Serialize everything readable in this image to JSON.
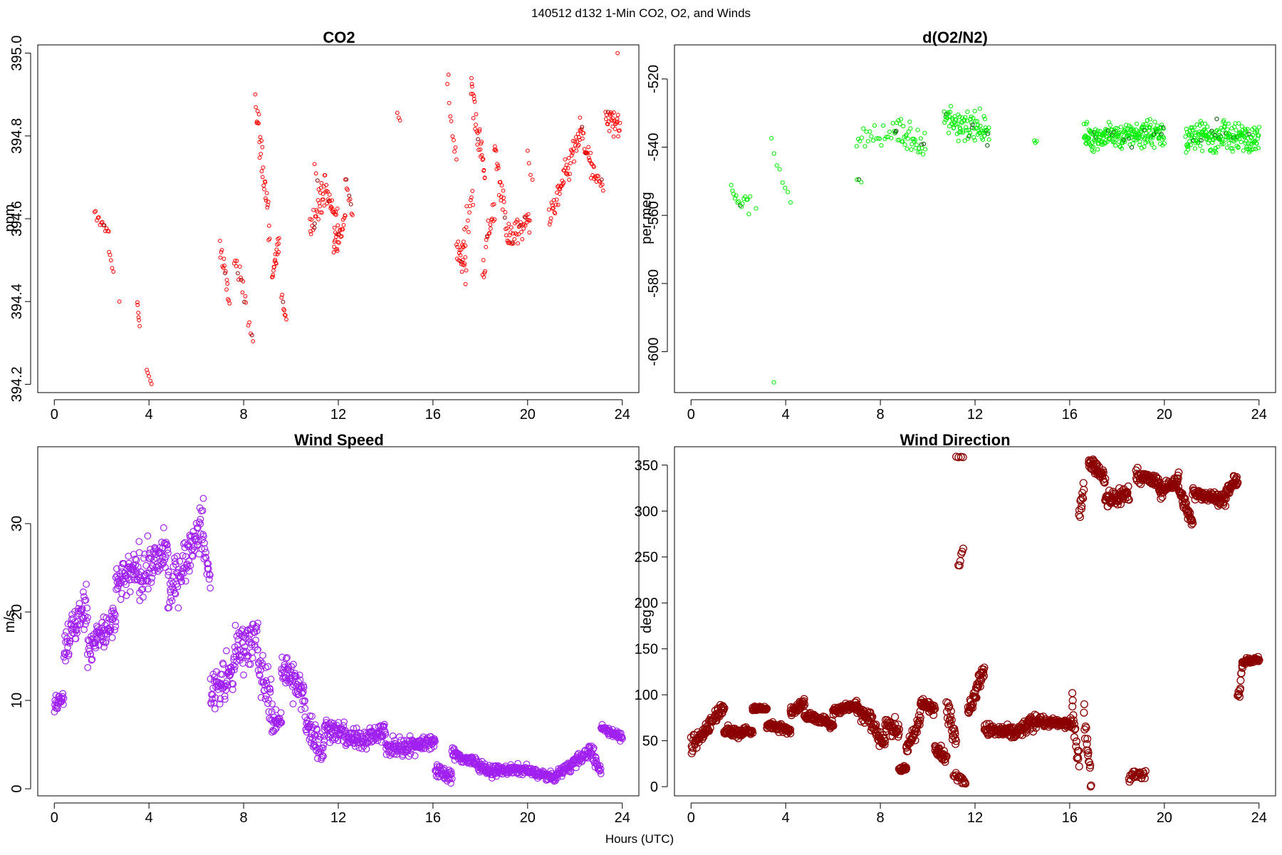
{
  "figure": {
    "suptitle": "140512   d132   1-Min CO2, O2, and Winds",
    "shared_xlabel": "Hours (UTC)"
  },
  "chart_data": [
    {
      "id": "co2",
      "type": "scatter",
      "title": "CO2",
      "xlabel": "",
      "ylabel": "ppm",
      "xlim": [
        -0.7,
        24.7
      ],
      "ylim": [
        394.18,
        395.02
      ],
      "xticks": [
        0,
        4,
        8,
        12,
        16,
        20,
        24
      ],
      "yticks": [
        394.2,
        394.4,
        394.6,
        394.8,
        395.0
      ],
      "ytick_labels": [
        "394.2",
        "394.4",
        "394.6",
        "394.8",
        "395.0"
      ],
      "ytick_rotated": true,
      "marker": "circle-open",
      "color": "#ff0000",
      "accent_color": "#8b0000",
      "grid": false,
      "segments": [
        {
          "x0": 1.7,
          "x1": 2.3,
          "y0": 394.61,
          "y1": 394.57,
          "n": 14,
          "noise": 0.015
        },
        {
          "x0": 2.3,
          "x1": 2.5,
          "y0": 394.52,
          "y1": 394.47,
          "n": 5,
          "noise": 0.01
        },
        {
          "x0": 2.75,
          "x1": 2.75,
          "y0": 394.4,
          "y1": 394.4,
          "n": 1,
          "noise": 0.0
        },
        {
          "x0": 3.5,
          "x1": 3.6,
          "y0": 394.4,
          "y1": 394.34,
          "n": 6,
          "noise": 0.012
        },
        {
          "x0": 3.9,
          "x1": 4.1,
          "y0": 394.24,
          "y1": 394.2,
          "n": 5,
          "noise": 0.012
        },
        {
          "x0": 7.0,
          "x1": 7.4,
          "y0": 394.53,
          "y1": 394.4,
          "n": 16,
          "noise": 0.04
        },
        {
          "x0": 7.6,
          "x1": 8.1,
          "y0": 394.5,
          "y1": 394.4,
          "n": 14,
          "noise": 0.04
        },
        {
          "x0": 8.2,
          "x1": 8.4,
          "y0": 394.36,
          "y1": 394.31,
          "n": 5,
          "noise": 0.02
        },
        {
          "x0": 8.5,
          "x1": 9.1,
          "y0": 394.88,
          "y1": 394.58,
          "n": 30,
          "noise": 0.07
        },
        {
          "x0": 9.2,
          "x1": 9.5,
          "y0": 394.46,
          "y1": 394.54,
          "n": 18,
          "noise": 0.04
        },
        {
          "x0": 9.6,
          "x1": 9.8,
          "y0": 394.41,
          "y1": 394.36,
          "n": 8,
          "noise": 0.015
        },
        {
          "x0": 10.8,
          "x1": 11.4,
          "y0": 394.58,
          "y1": 394.66,
          "n": 24,
          "noise": 0.05
        },
        {
          "x0": 11.0,
          "x1": 11.3,
          "y0": 394.74,
          "y1": 394.62,
          "n": 6,
          "noise": 0.02
        },
        {
          "x0": 11.4,
          "x1": 12.0,
          "y0": 394.68,
          "y1": 394.58,
          "n": 30,
          "noise": 0.05
        },
        {
          "x0": 11.8,
          "x1": 12.3,
          "y0": 394.52,
          "y1": 394.6,
          "n": 22,
          "noise": 0.04
        },
        {
          "x0": 12.3,
          "x1": 12.6,
          "y0": 394.7,
          "y1": 394.62,
          "n": 10,
          "noise": 0.03
        },
        {
          "x0": 14.5,
          "x1": 14.6,
          "y0": 394.85,
          "y1": 394.84,
          "n": 3,
          "noise": 0.01
        },
        {
          "x0": 16.6,
          "x1": 17.0,
          "y0": 394.92,
          "y1": 394.75,
          "n": 10,
          "noise": 0.05
        },
        {
          "x0": 17.0,
          "x1": 17.4,
          "y0": 394.52,
          "y1": 394.48,
          "n": 20,
          "noise": 0.04
        },
        {
          "x0": 17.2,
          "x1": 17.7,
          "y0": 394.52,
          "y1": 394.68,
          "n": 16,
          "noise": 0.05
        },
        {
          "x0": 17.6,
          "x1": 18.2,
          "y0": 394.92,
          "y1": 394.7,
          "n": 30,
          "noise": 0.07
        },
        {
          "x0": 18.1,
          "x1": 18.6,
          "y0": 394.48,
          "y1": 394.62,
          "n": 20,
          "noise": 0.06
        },
        {
          "x0": 18.6,
          "x1": 19.2,
          "y0": 394.78,
          "y1": 394.55,
          "n": 26,
          "noise": 0.06
        },
        {
          "x0": 19.2,
          "x1": 20.1,
          "y0": 394.55,
          "y1": 394.6,
          "n": 36,
          "noise": 0.04
        },
        {
          "x0": 20.0,
          "x1": 20.2,
          "y0": 394.75,
          "y1": 394.7,
          "n": 4,
          "noise": 0.02
        },
        {
          "x0": 20.9,
          "x1": 21.3,
          "y0": 394.6,
          "y1": 394.65,
          "n": 16,
          "noise": 0.04
        },
        {
          "x0": 21.3,
          "x1": 22.2,
          "y0": 394.66,
          "y1": 394.8,
          "n": 40,
          "noise": 0.05
        },
        {
          "x0": 22.2,
          "x1": 22.8,
          "y0": 394.82,
          "y1": 394.7,
          "n": 26,
          "noise": 0.05
        },
        {
          "x0": 22.8,
          "x1": 23.2,
          "y0": 394.7,
          "y1": 394.68,
          "n": 12,
          "noise": 0.02
        },
        {
          "x0": 23.3,
          "x1": 23.9,
          "y0": 394.85,
          "y1": 394.82,
          "n": 30,
          "noise": 0.05
        },
        {
          "x0": 23.8,
          "x1": 23.8,
          "y0": 395.0,
          "y1": 395.0,
          "n": 1,
          "noise": 0.0
        }
      ]
    },
    {
      "id": "o2",
      "type": "scatter",
      "title": "d(O2/N2)",
      "xlabel": "",
      "ylabel": "per meg",
      "xlim": [
        -0.7,
        24.7
      ],
      "ylim": [
        -612,
        -510
      ],
      "xticks": [
        0,
        4,
        8,
        12,
        16,
        20,
        24
      ],
      "yticks": [
        -600,
        -580,
        -560,
        -540,
        -520
      ],
      "ytick_labels": [
        "-600",
        "-580",
        "-560",
        "-540",
        "-520"
      ],
      "ytick_rotated": true,
      "marker": "circle-open",
      "color": "#00ee00",
      "accent_color": "#005500",
      "grid": false,
      "segments": [
        {
          "x0": 1.7,
          "x1": 2.5,
          "y0": -553,
          "y1": -557,
          "n": 16,
          "noise": 5
        },
        {
          "x0": 2.7,
          "x1": 2.8,
          "y0": -558,
          "y1": -558,
          "n": 1,
          "noise": 0
        },
        {
          "x0": 3.4,
          "x1": 4.2,
          "y0": -540,
          "y1": -556,
          "n": 8,
          "noise": 4
        },
        {
          "x0": 3.5,
          "x1": 3.5,
          "y0": -609,
          "y1": -609,
          "n": 1,
          "noise": 0
        },
        {
          "x0": 7.0,
          "x1": 7.2,
          "y0": -549,
          "y1": -550,
          "n": 3,
          "noise": 1
        },
        {
          "x0": 7.0,
          "x1": 8.6,
          "y0": -538,
          "y1": -536,
          "n": 24,
          "noise": 4
        },
        {
          "x0": 8.6,
          "x1": 9.9,
          "y0": -535,
          "y1": -540,
          "n": 40,
          "noise": 6
        },
        {
          "x0": 10.7,
          "x1": 12.6,
          "y0": -532,
          "y1": -535,
          "n": 90,
          "noise": 6
        },
        {
          "x0": 14.5,
          "x1": 14.6,
          "y0": -538,
          "y1": -538,
          "n": 3,
          "noise": 1
        },
        {
          "x0": 16.6,
          "x1": 20.0,
          "y0": -537,
          "y1": -536,
          "n": 230,
          "noise": 5
        },
        {
          "x0": 20.9,
          "x1": 24.0,
          "y0": -537,
          "y1": -537,
          "n": 200,
          "noise": 5
        }
      ]
    },
    {
      "id": "wind_speed",
      "type": "scatter",
      "title": "Wind Speed",
      "xlabel": "",
      "ylabel": "m/s",
      "xlim": [
        -0.7,
        24.7
      ],
      "ylim": [
        -0.8,
        38.7
      ],
      "xticks": [
        0,
        4,
        8,
        12,
        16,
        20,
        24
      ],
      "yticks": [
        0,
        10,
        20,
        30
      ],
      "ytick_labels": [
        "0",
        "10",
        "20",
        "30"
      ],
      "ytick_rotated": true,
      "marker": "circle-open",
      "color": "#a020f0",
      "grid": false,
      "segments": [
        {
          "x0": 0.0,
          "x1": 0.4,
          "y0": 9.5,
          "y1": 10.5,
          "n": 24,
          "noise": 1.2
        },
        {
          "x0": 0.4,
          "x1": 1.4,
          "y0": 16,
          "y1": 21,
          "n": 60,
          "noise": 3.2
        },
        {
          "x0": 1.4,
          "x1": 2.6,
          "y0": 16,
          "y1": 19,
          "n": 72,
          "noise": 2.8
        },
        {
          "x0": 2.6,
          "x1": 3.6,
          "y0": 23,
          "y1": 25,
          "n": 60,
          "noise": 3.0
        },
        {
          "x0": 3.6,
          "x1": 4.8,
          "y0": 24,
          "y1": 27,
          "n": 72,
          "noise": 3.3
        },
        {
          "x0": 4.8,
          "x1": 6.3,
          "y0": 22,
          "y1": 30,
          "n": 90,
          "noise": 3.2
        },
        {
          "x0": 6.3,
          "x1": 6.6,
          "y0": 28,
          "y1": 23,
          "n": 16,
          "noise": 2.0
        },
        {
          "x0": 6.6,
          "x1": 7.6,
          "y0": 11,
          "y1": 13,
          "n": 60,
          "noise": 3.0
        },
        {
          "x0": 7.6,
          "x1": 8.6,
          "y0": 16,
          "y1": 17,
          "n": 60,
          "noise": 3.5
        },
        {
          "x0": 8.6,
          "x1": 9.2,
          "y0": 14,
          "y1": 10,
          "n": 36,
          "noise": 3.5
        },
        {
          "x0": 9.2,
          "x1": 9.6,
          "y0": 7,
          "y1": 8,
          "n": 24,
          "noise": 1.5
        },
        {
          "x0": 9.6,
          "x1": 10.6,
          "y0": 14,
          "y1": 10,
          "n": 60,
          "noise": 3.0
        },
        {
          "x0": 10.6,
          "x1": 11.4,
          "y0": 8,
          "y1": 4,
          "n": 48,
          "noise": 2.5
        },
        {
          "x0": 11.4,
          "x1": 12.8,
          "y0": 7,
          "y1": 5.5,
          "n": 84,
          "noise": 1.6
        },
        {
          "x0": 12.8,
          "x1": 14.0,
          "y0": 5.5,
          "y1": 6.5,
          "n": 72,
          "noise": 1.5
        },
        {
          "x0": 14.0,
          "x1": 15.2,
          "y0": 4.5,
          "y1": 5.0,
          "n": 72,
          "noise": 1.4
        },
        {
          "x0": 15.2,
          "x1": 16.1,
          "y0": 5.0,
          "y1": 5.5,
          "n": 54,
          "noise": 1.2
        },
        {
          "x0": 16.1,
          "x1": 16.8,
          "y0": 2.0,
          "y1": 1.5,
          "n": 42,
          "noise": 1.0
        },
        {
          "x0": 16.8,
          "x1": 18.2,
          "y0": 4.0,
          "y1": 2.5,
          "n": 84,
          "noise": 0.9
        },
        {
          "x0": 18.2,
          "x1": 20.0,
          "y0": 2.0,
          "y1": 2.2,
          "n": 108,
          "noise": 0.7
        },
        {
          "x0": 20.0,
          "x1": 21.2,
          "y0": 2.0,
          "y1": 1.2,
          "n": 72,
          "noise": 0.6
        },
        {
          "x0": 21.2,
          "x1": 22.6,
          "y0": 1.5,
          "y1": 4.2,
          "n": 84,
          "noise": 0.8
        },
        {
          "x0": 22.6,
          "x1": 23.1,
          "y0": 4.5,
          "y1": 2.0,
          "n": 30,
          "noise": 1.2
        },
        {
          "x0": 23.1,
          "x1": 24.0,
          "y0": 7.0,
          "y1": 5.8,
          "n": 54,
          "noise": 0.6
        }
      ]
    },
    {
      "id": "wind_direction",
      "type": "scatter",
      "title": "Wind Direction",
      "xlabel": "",
      "ylabel": "deg",
      "xlim": [
        -0.7,
        24.7
      ],
      "ylim": [
        -10,
        370
      ],
      "xticks": [
        0,
        4,
        8,
        12,
        16,
        20,
        24
      ],
      "yticks": [
        0,
        50,
        100,
        150,
        200,
        250,
        300,
        350
      ],
      "ytick_labels": [
        "0",
        "50",
        "100",
        "150",
        "200",
        "250",
        "300",
        "350"
      ],
      "ytick_rotated": false,
      "marker": "circle-open",
      "color": "#8b0000",
      "grid": false,
      "segments": [
        {
          "x0": 0.0,
          "x1": 0.6,
          "y0": 45,
          "y1": 60,
          "n": 36,
          "noise": 12
        },
        {
          "x0": 0.6,
          "x1": 1.4,
          "y0": 62,
          "y1": 90,
          "n": 48,
          "noise": 9
        },
        {
          "x0": 1.4,
          "x1": 2.2,
          "y0": 60,
          "y1": 58,
          "n": 48,
          "noise": 7
        },
        {
          "x0": 2.2,
          "x1": 2.6,
          "y0": 62,
          "y1": 60,
          "n": 24,
          "noise": 5
        },
        {
          "x0": 2.6,
          "x1": 3.2,
          "y0": 85,
          "y1": 85,
          "n": 36,
          "noise": 3
        },
        {
          "x0": 3.2,
          "x1": 4.2,
          "y0": 68,
          "y1": 62,
          "n": 60,
          "noise": 6
        },
        {
          "x0": 4.2,
          "x1": 4.8,
          "y0": 80,
          "y1": 92,
          "n": 36,
          "noise": 6
        },
        {
          "x0": 4.8,
          "x1": 6.0,
          "y0": 78,
          "y1": 68,
          "n": 72,
          "noise": 6
        },
        {
          "x0": 6.0,
          "x1": 7.0,
          "y0": 82,
          "y1": 90,
          "n": 60,
          "noise": 6
        },
        {
          "x0": 7.0,
          "x1": 7.6,
          "y0": 85,
          "y1": 75,
          "n": 36,
          "noise": 12
        },
        {
          "x0": 7.6,
          "x1": 8.2,
          "y0": 70,
          "y1": 45,
          "n": 36,
          "noise": 14
        },
        {
          "x0": 8.2,
          "x1": 8.8,
          "y0": 70,
          "y1": 60,
          "n": 36,
          "noise": 12
        },
        {
          "x0": 8.8,
          "x1": 9.1,
          "y0": 20,
          "y1": 18,
          "n": 18,
          "noise": 4
        },
        {
          "x0": 9.1,
          "x1": 9.7,
          "y0": 40,
          "y1": 75,
          "n": 36,
          "noise": 12
        },
        {
          "x0": 9.7,
          "x1": 10.3,
          "y0": 90,
          "y1": 85,
          "n": 36,
          "noise": 8
        },
        {
          "x0": 10.3,
          "x1": 10.8,
          "y0": 45,
          "y1": 30,
          "n": 30,
          "noise": 8
        },
        {
          "x0": 10.8,
          "x1": 11.2,
          "y0": 85,
          "y1": 55,
          "n": 24,
          "noise": 18
        },
        {
          "x0": 11.1,
          "x1": 11.6,
          "y0": 15,
          "y1": 5,
          "n": 18,
          "noise": 6
        },
        {
          "x0": 11.3,
          "x1": 11.5,
          "y0": 240,
          "y1": 262,
          "n": 6,
          "noise": 6
        },
        {
          "x0": 11.2,
          "x1": 11.5,
          "y0": 358,
          "y1": 358,
          "n": 4,
          "noise": 2
        },
        {
          "x0": 11.7,
          "x1": 12.4,
          "y0": 80,
          "y1": 130,
          "n": 42,
          "noise": 12
        },
        {
          "x0": 12.4,
          "x1": 13.8,
          "y0": 62,
          "y1": 58,
          "n": 84,
          "noise": 9
        },
        {
          "x0": 13.8,
          "x1": 14.8,
          "y0": 60,
          "y1": 75,
          "n": 60,
          "noise": 10
        },
        {
          "x0": 14.8,
          "x1": 16.1,
          "y0": 70,
          "y1": 68,
          "n": 78,
          "noise": 6
        },
        {
          "x0": 16.1,
          "x1": 16.4,
          "y0": 90,
          "y1": 25,
          "n": 18,
          "noise": 18
        },
        {
          "x0": 16.4,
          "x1": 16.6,
          "y0": 290,
          "y1": 330,
          "n": 12,
          "noise": 20
        },
        {
          "x0": 16.6,
          "x1": 16.9,
          "y0": 80,
          "y1": 10,
          "n": 18,
          "noise": 18
        },
        {
          "x0": 16.8,
          "x1": 17.5,
          "y0": 355,
          "y1": 335,
          "n": 42,
          "noise": 10
        },
        {
          "x0": 17.5,
          "x1": 18.5,
          "y0": 310,
          "y1": 320,
          "n": 60,
          "noise": 14
        },
        {
          "x0": 18.5,
          "x1": 19.2,
          "y0": 10,
          "y1": 15,
          "n": 24,
          "noise": 8
        },
        {
          "x0": 18.8,
          "x1": 19.8,
          "y0": 340,
          "y1": 330,
          "n": 60,
          "noise": 9
        },
        {
          "x0": 19.8,
          "x1": 20.6,
          "y0": 320,
          "y1": 335,
          "n": 48,
          "noise": 9
        },
        {
          "x0": 20.6,
          "x1": 21.2,
          "y0": 325,
          "y1": 285,
          "n": 36,
          "noise": 10
        },
        {
          "x0": 21.2,
          "x1": 22.6,
          "y0": 320,
          "y1": 312,
          "n": 84,
          "noise": 8
        },
        {
          "x0": 22.6,
          "x1": 23.1,
          "y0": 320,
          "y1": 335,
          "n": 30,
          "noise": 8
        },
        {
          "x0": 23.1,
          "x1": 23.3,
          "y0": 95,
          "y1": 125,
          "n": 12,
          "noise": 12
        },
        {
          "x0": 23.3,
          "x1": 24.0,
          "y0": 135,
          "y1": 140,
          "n": 42,
          "noise": 4
        }
      ]
    }
  ]
}
